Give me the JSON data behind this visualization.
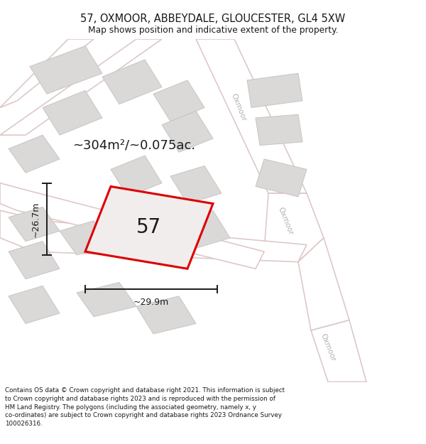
{
  "title_line1": "57, OXMOOR, ABBEYDALE, GLOUCESTER, GL4 5XW",
  "title_line2": "Map shows position and indicative extent of the property.",
  "footer_text": "Contains OS data © Crown copyright and database right 2021. This information is subject to Crown copyright and database rights 2023 and is reproduced with the permission of HM Land Registry. The polygons (including the associated geometry, namely x, y co-ordinates) are subject to Crown copyright and database rights 2023 Ordnance Survey 100026316.",
  "area_text": "~304m²/~0.075ac.",
  "width_label": "~29.9m",
  "height_label": "~26.7m",
  "number_label": "57",
  "plot_outline_color": "#dd0000",
  "dim_line_color": "#1a1a1a",
  "text_color": "#1a1a1a",
  "map_bg": "#eeebeb",
  "road_fill": "#ffffff",
  "road_edge": "#dfc8c8",
  "block_fill": "#dbd8d8",
  "block_edge": "#c8c4c4",
  "road_label_color": "#b8b0b0"
}
